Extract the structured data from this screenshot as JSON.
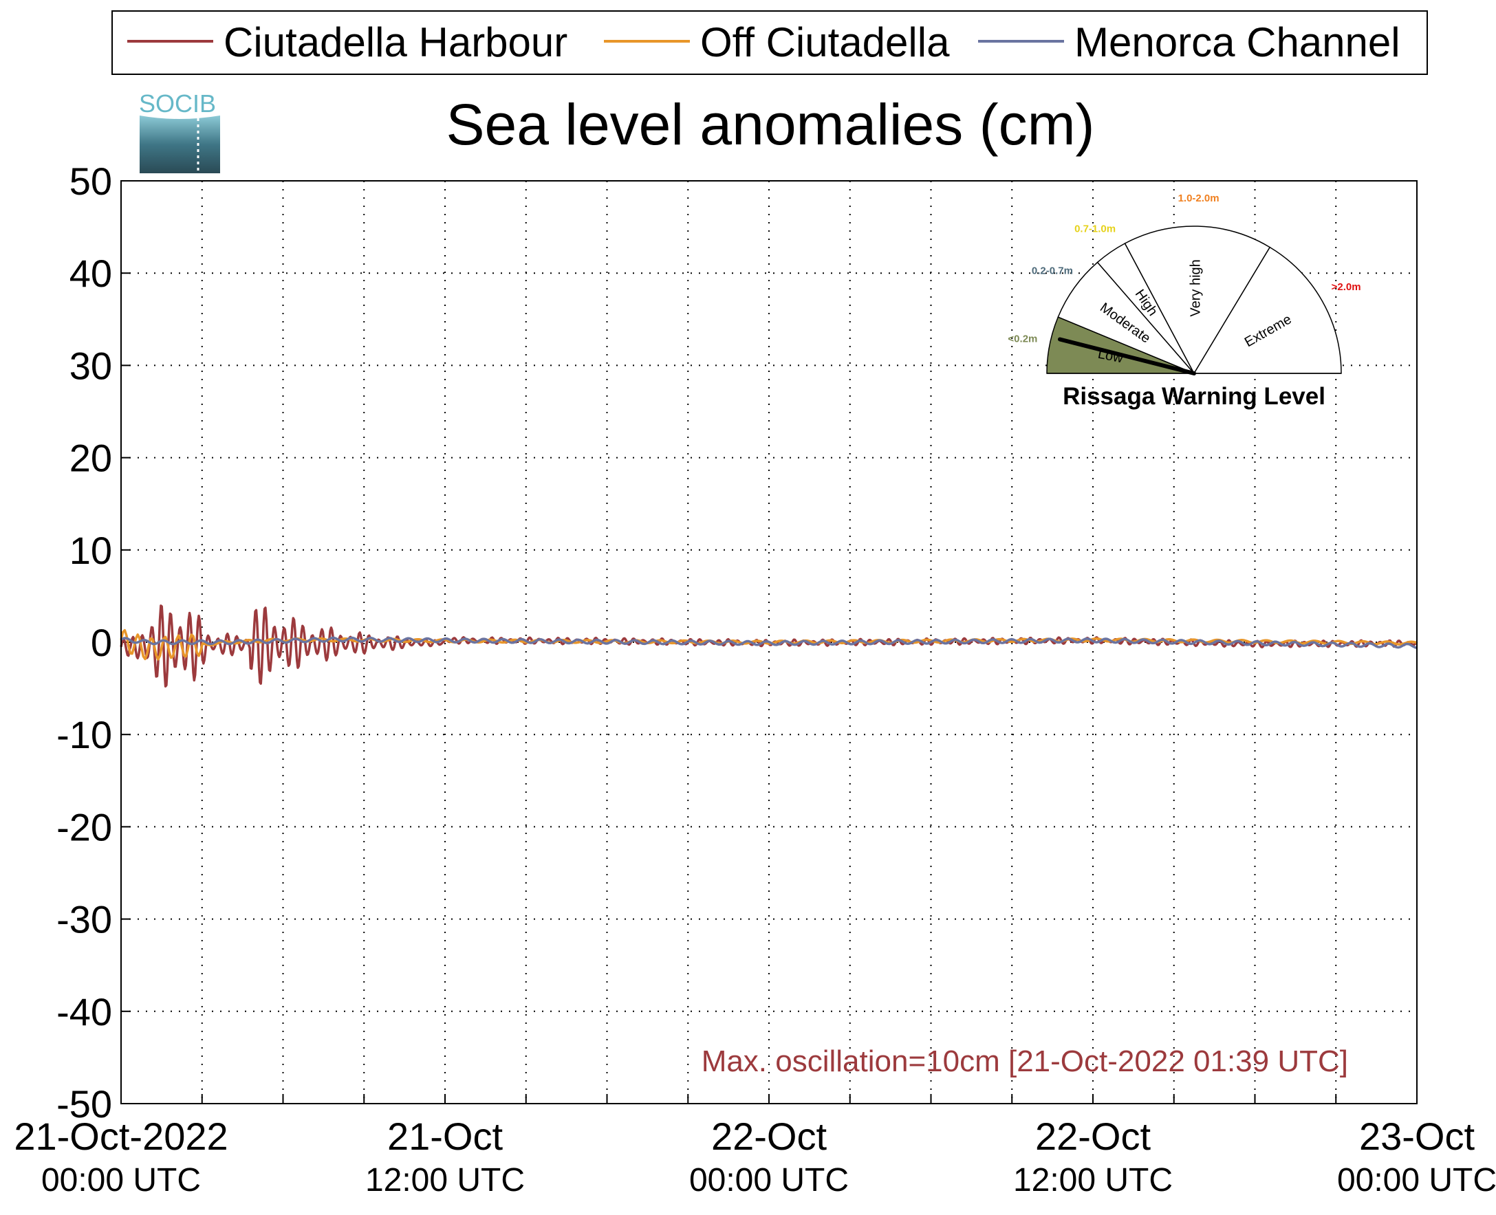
{
  "chart_data": {
    "type": "line",
    "title": "Sea level anomalies (cm)",
    "ylim": [
      -50,
      50
    ],
    "yticks": [
      50,
      40,
      30,
      20,
      10,
      0,
      -10,
      -20,
      -30,
      -40,
      -50
    ],
    "xlim": [
      "2022-10-21T00:00Z",
      "2022-10-23T00:00Z"
    ],
    "xticks": [
      {
        "line1": "21-Oct-2022",
        "line2": "00:00 UTC"
      },
      {
        "line1": "21-Oct",
        "line2": "12:00 UTC"
      },
      {
        "line1": "22-Oct",
        "line2": "00:00 UTC"
      },
      {
        "line1": "22-Oct",
        "line2": "12:00 UTC"
      },
      {
        "line1": "23-Oct",
        "line2": "00:00 UTC"
      }
    ],
    "grid": true,
    "legend_position": "top",
    "series": [
      {
        "name": "Ciutadella Harbour",
        "color": "#9c3a3d",
        "x": [
          "2022-10-21T00:00Z",
          "2022-10-21T01:00Z",
          "2022-10-21T02:00Z",
          "2022-10-21T03:00Z",
          "2022-10-21T04:00Z",
          "2022-10-21T05:00Z",
          "2022-10-21T06:00Z",
          "2022-10-21T08:00Z",
          "2022-10-21T10:00Z",
          "2022-10-21T12:00Z",
          "2022-10-21T18:00Z",
          "2022-10-22T00:00Z",
          "2022-10-22T12:00Z",
          "2022-10-22T18:00Z",
          "2022-10-23T00:00Z"
        ],
        "y": [
          0.5,
          4,
          -5.5,
          4,
          -4,
          0.3,
          3.5,
          2.5,
          1,
          0.5,
          0.3,
          -0.2,
          0.5,
          -0.5,
          -0.3
        ]
      },
      {
        "name": "Off Ciutadella",
        "color": "#e8962a",
        "x": [
          "2022-10-21T00:00Z",
          "2022-10-21T01:00Z",
          "2022-10-21T02:00Z",
          "2022-10-21T04:00Z",
          "2022-10-21T06:00Z",
          "2022-10-21T08:00Z",
          "2022-10-21T12:00Z",
          "2022-10-22T00:00Z",
          "2022-10-22T12:00Z",
          "2022-10-23T00:00Z"
        ],
        "y": [
          0.5,
          -1.5,
          -1,
          0,
          0.5,
          0.5,
          0.3,
          0,
          0.5,
          -0.2
        ]
      },
      {
        "name": "Menorca Channel",
        "color": "#6a74a0",
        "x": [
          "2022-10-21T00:00Z",
          "2022-10-21T01:00Z",
          "2022-10-21T04:00Z",
          "2022-10-21T08:00Z",
          "2022-10-21T12:00Z",
          "2022-10-22T00:00Z",
          "2022-10-22T12:00Z",
          "2022-10-23T00:00Z"
        ],
        "y": [
          0.3,
          0,
          0,
          0.3,
          0.2,
          -0.1,
          0.2,
          -0.4
        ]
      }
    ],
    "annotation": "Max. oscillation=10cm [21-Oct-2022 01:39 UTC]",
    "annotation_color": "#9c3a3d"
  },
  "logo": {
    "text": "SOCIB",
    "color": "#66b8c8"
  },
  "gauge": {
    "title": "Rissaga Warning Level",
    "current_level": "Low",
    "levels": [
      {
        "name": "Low",
        "range": "<0.2m",
        "range_color": "#7d8a55",
        "fill": "#7d8a55"
      },
      {
        "name": "Moderate",
        "range": "0.2-0.7m",
        "range_color": "#4d6a7a",
        "fill": "#ffffff"
      },
      {
        "name": "High",
        "range": "0.7-1.0m",
        "range_color": "#e6d21a",
        "fill": "#ffffff"
      },
      {
        "name": "Very high",
        "range": "1.0-2.0m",
        "range_color": "#f08020",
        "fill": "#ffffff"
      },
      {
        "name": "Extreme",
        "range": ">2.0m",
        "range_color": "#e01010",
        "fill": "#ffffff"
      }
    ]
  }
}
